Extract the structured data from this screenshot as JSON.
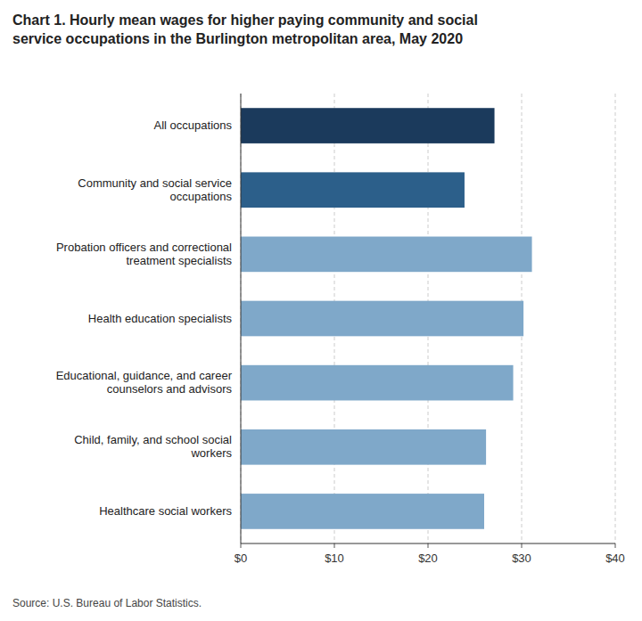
{
  "chart_data": {
    "type": "bar",
    "orientation": "horizontal",
    "title": "Chart 1. Hourly mean wages for higher paying community and social\nservice occupations in the Burlington metropolitan area, May 2020",
    "categories": [
      "Healthcare social workers",
      "Child, family, and school social\nworkers",
      "Educational, guidance, and career\ncounselors and advisors",
      "Health education specialists",
      "Probation officers and correctional\ntreatment specialists",
      "Community and social service\noccupations",
      "All occupations"
    ],
    "values": [
      26.0,
      26.2,
      29.1,
      30.2,
      31.1,
      23.9,
      27.1
    ],
    "colors": [
      "#7fa8c9",
      "#7fa8c9",
      "#7fa8c9",
      "#7fa8c9",
      "#7fa8c9",
      "#2c5f8a",
      "#1b3a5c"
    ],
    "xlim": [
      0,
      40
    ],
    "xticks": [
      {
        "value": 0,
        "label": "$0"
      },
      {
        "value": 10,
        "label": "$10"
      },
      {
        "value": 20,
        "label": "$20"
      },
      {
        "value": 30,
        "label": "$30"
      },
      {
        "value": 40,
        "label": "$40"
      }
    ],
    "grid": true,
    "source": "Source: U.S. Bureau of Labor Statistics."
  }
}
